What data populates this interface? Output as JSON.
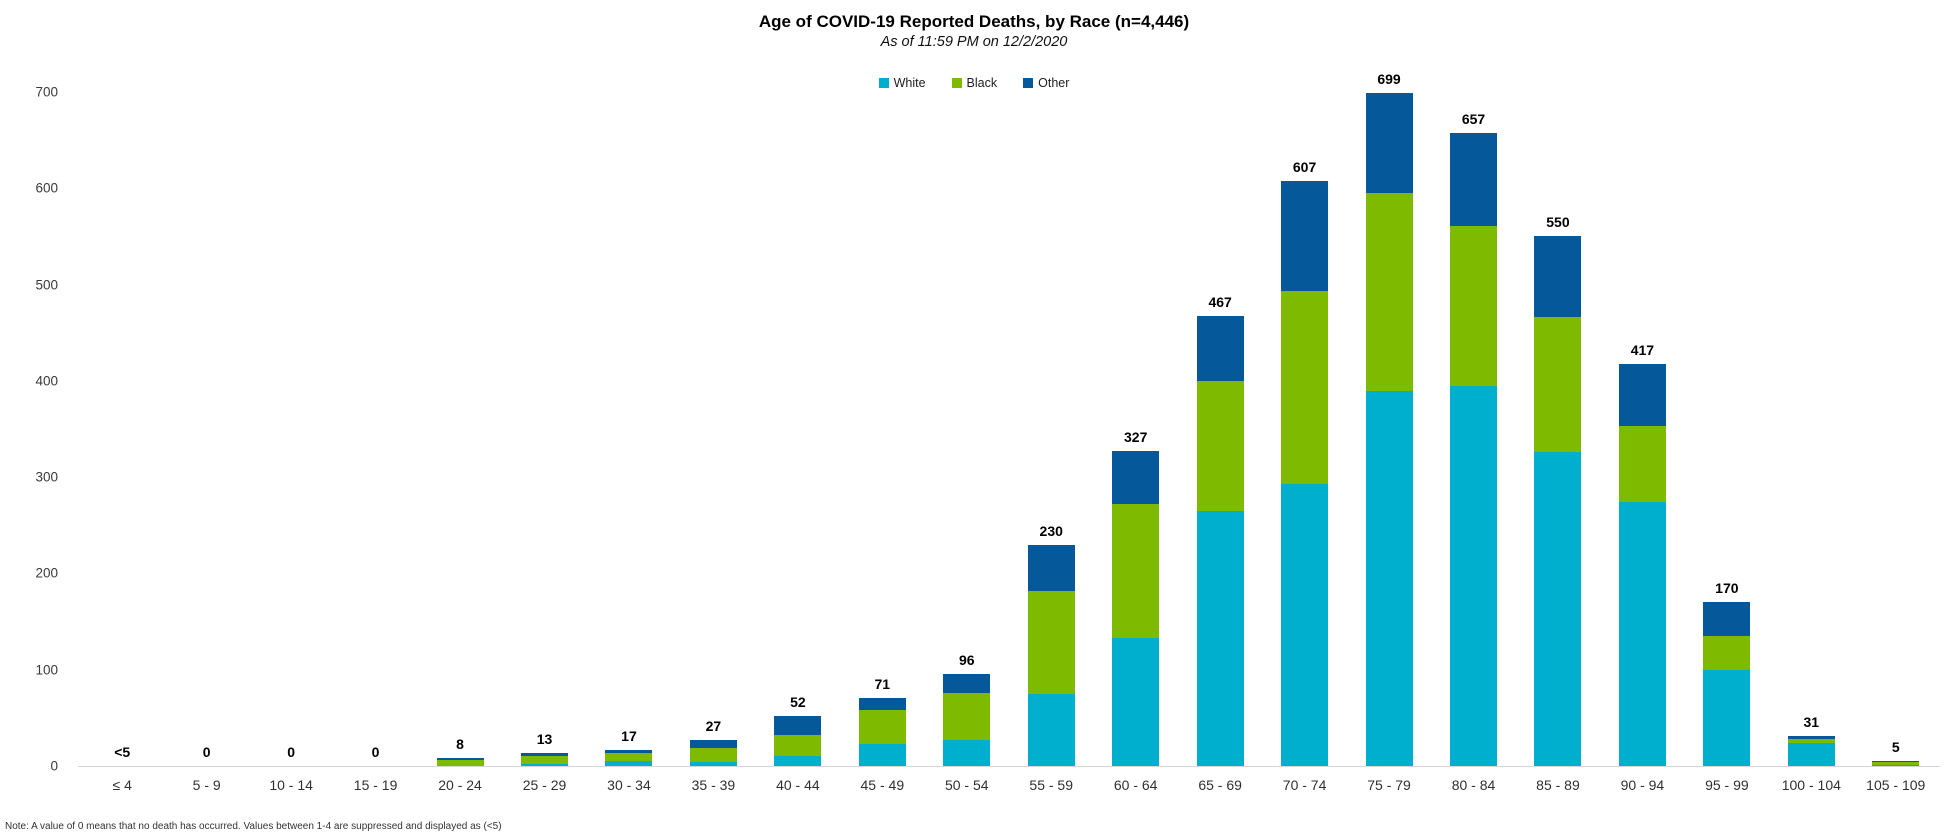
{
  "header": {
    "title": "Age of COVID-19 Reported Deaths, by Race (n=4,446)",
    "subtitle": "As of 11:59 PM on 12/2/2020"
  },
  "footer": {
    "note": "Note: A value of 0 means that no death has occurred. Values between 1-4 are suppressed and displayed as (<5)"
  },
  "chart_data": {
    "type": "bar",
    "variant": "stacked-column",
    "title": "Age of COVID-19 Reported Deaths, by Race (n=4,446)",
    "subtitle": "As of 11:59 PM on 12/2/2020",
    "legend_position": "top-center",
    "grid": false,
    "xlabel": "",
    "ylabel": "",
    "ylim": [
      0,
      700
    ],
    "yticks": [
      0,
      100,
      200,
      300,
      400,
      500,
      600,
      700
    ],
    "categories": [
      "≤ 4",
      "5 - 9",
      "10 - 14",
      "15 - 19",
      "20 - 24",
      "25 - 29",
      "30 - 34",
      "35 - 39",
      "40 - 44",
      "45 - 49",
      "50 - 54",
      "55 - 59",
      "60 - 64",
      "65 - 69",
      "70 - 74",
      "75 - 79",
      "80 - 84",
      "85 - 89",
      "90 - 94",
      "95 - 99",
      "100 - 104",
      "105 - 109"
    ],
    "total_labels": [
      "<5",
      "0",
      "0",
      "0",
      "8",
      "13",
      "17",
      "27",
      "52",
      "71",
      "96",
      "230",
      "327",
      "467",
      "607",
      "699",
      "657",
      "550",
      "417",
      "170",
      "31",
      "5"
    ],
    "totals": [
      0,
      0,
      0,
      0,
      8,
      13,
      17,
      27,
      52,
      71,
      96,
      230,
      327,
      467,
      607,
      699,
      657,
      550,
      417,
      170,
      31,
      5
    ],
    "series": [
      {
        "name": "White",
        "color": "#00AECD",
        "values": [
          0,
          0,
          0,
          0,
          0,
          2,
          5,
          4,
          10,
          23,
          27,
          75,
          133,
          265,
          293,
          389,
          395,
          326,
          274,
          100,
          24,
          1
        ]
      },
      {
        "name": "Black",
        "color": "#7EBB00",
        "values": [
          0,
          0,
          0,
          0,
          6,
          8,
          9,
          15,
          22,
          35,
          49,
          107,
          139,
          135,
          200,
          206,
          166,
          140,
          79,
          35,
          4,
          3
        ]
      },
      {
        "name": "Other",
        "color": "#05599B",
        "values": [
          0,
          0,
          0,
          0,
          2,
          3,
          3,
          8,
          20,
          13,
          20,
          48,
          55,
          67,
          114,
          104,
          96,
          84,
          64,
          35,
          3,
          1
        ]
      }
    ],
    "note": "Note: A value of 0 means that no death has occurred. Values between 1-4 are suppressed and displayed as (<5)",
    "baseline_color": "#d6d6d6"
  }
}
